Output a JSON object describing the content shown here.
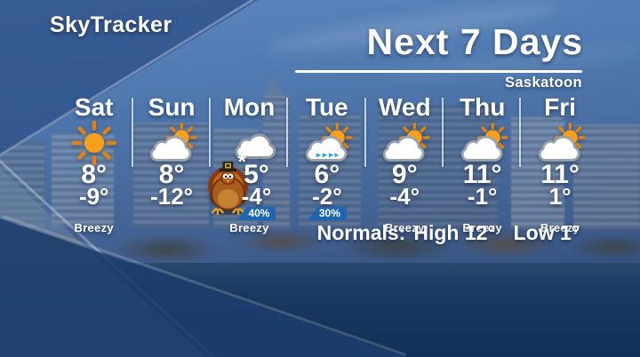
{
  "branding": {
    "logo": "SkyTracker"
  },
  "header": {
    "title": "Next 7 Days",
    "location": "Saskatoon"
  },
  "forecast": {
    "days": [
      {
        "name": "Sat",
        "icon": "sunny",
        "high": "8°",
        "low": "-9°",
        "pop": "",
        "note": "Breezy",
        "mark": ""
      },
      {
        "name": "Sun",
        "icon": "sun-cloud",
        "high": "8°",
        "low": "-12°",
        "pop": "",
        "note": "",
        "mark": ""
      },
      {
        "name": "Mon",
        "icon": "cloud-flurries",
        "high": "5°",
        "low": "-4°",
        "pop": "40%",
        "note": "Breezy",
        "mark": "*"
      },
      {
        "name": "Tue",
        "icon": "sun-cloud-showers",
        "high": "6°",
        "low": "-2°",
        "pop": "30%",
        "note": "",
        "mark": ""
      },
      {
        "name": "Wed",
        "icon": "sun-cloud",
        "high": "9°",
        "low": "-4°",
        "pop": "",
        "note": "Breezy",
        "mark": ""
      },
      {
        "name": "Thu",
        "icon": "sun-cloud",
        "high": "11°",
        "low": "-1°",
        "pop": "",
        "note": "Breezy",
        "mark": ""
      },
      {
        "name": "Fri",
        "icon": "sun-cloud",
        "high": "11°",
        "low": "1°",
        "pop": "",
        "note": "Breezy",
        "mark": ""
      }
    ],
    "normals": {
      "label": "Normals:",
      "high": "High 12°",
      "low": "Low 1°"
    }
  },
  "mascot": {
    "icon": "thanksgiving-turkey-icon"
  },
  "colors": {
    "sun_orange": "#f8a01b",
    "sun_ray_orange": "#e2830f",
    "badge_blue": "#1c67b0",
    "shower_blue": "#2aa3df",
    "sky_blue": "#4f79af",
    "navy": "#1d3c6d"
  }
}
